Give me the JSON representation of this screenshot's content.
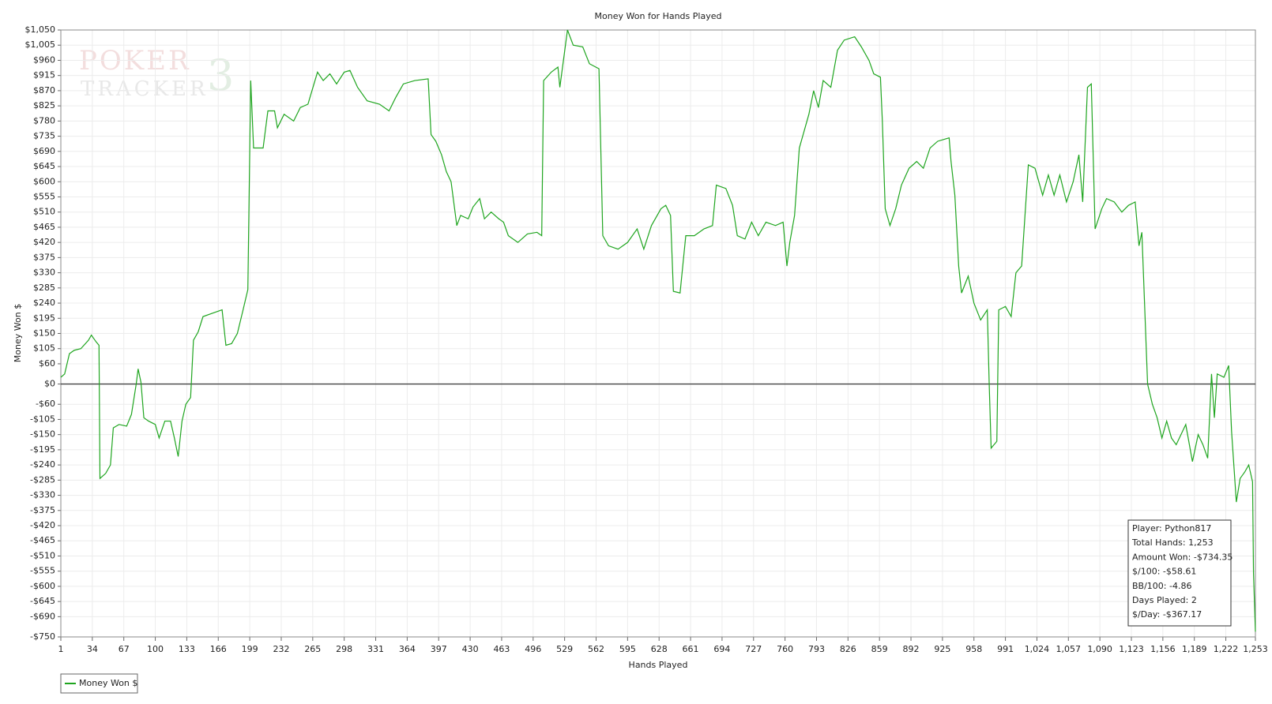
{
  "chart_data": {
    "type": "line",
    "title": "Money Won for Hands Played",
    "x_label": "Hands Played",
    "y_label": "Money Won $",
    "logo": [
      "POKER",
      "TRACKER",
      "3"
    ],
    "x": [
      1,
      5,
      10,
      15,
      22,
      30,
      33,
      38,
      41,
      42,
      48,
      53,
      56,
      62,
      70,
      75,
      80,
      82,
      85,
      88,
      93,
      100,
      104,
      110,
      116,
      120,
      124,
      128,
      132,
      137,
      140,
      145,
      150,
      160,
      170,
      174,
      180,
      186,
      192,
      197,
      200,
      203,
      213,
      218,
      225,
      228,
      235,
      245,
      252,
      260,
      270,
      276,
      283,
      290,
      298,
      304,
      312,
      322,
      335,
      345,
      352,
      360,
      372,
      386,
      389,
      394,
      400,
      405,
      410,
      416,
      420,
      428,
      433,
      440,
      445,
      452,
      460,
      465,
      470,
      480,
      490,
      500,
      505,
      507,
      515,
      522,
      524,
      532,
      538,
      548,
      555,
      565,
      569,
      575,
      585,
      595,
      605,
      612,
      620,
      630,
      635,
      640,
      643,
      650,
      656,
      665,
      675,
      684,
      688,
      698,
      705,
      710,
      718,
      725,
      732,
      740,
      750,
      758,
      762,
      765,
      770,
      775,
      780,
      785,
      790,
      795,
      800,
      808,
      815,
      822,
      833,
      840,
      848,
      853,
      860,
      862,
      865,
      870,
      876,
      882,
      890,
      898,
      905,
      912,
      920,
      932,
      934,
      938,
      942,
      945,
      952,
      958,
      965,
      972,
      974,
      976,
      982,
      984,
      991,
      997,
      1002,
      1008,
      1015,
      1022,
      1030,
      1036,
      1042,
      1048,
      1055,
      1062,
      1068,
      1072,
      1077,
      1081,
      1085,
      1092,
      1097,
      1105,
      1113,
      1120,
      1127,
      1131,
      1134,
      1140,
      1145,
      1150,
      1155,
      1160,
      1165,
      1170,
      1180,
      1187,
      1193,
      1198,
      1203,
      1207,
      1210,
      1213,
      1220,
      1225,
      1228,
      1233,
      1237,
      1242,
      1246,
      1250,
      1251,
      1253
    ],
    "series": [
      {
        "name": "Money Won $",
        "color": "#1fa51f",
        "values": [
          20,
          30,
          90,
          100,
          105,
          130,
          145,
          125,
          115,
          -280,
          -265,
          -240,
          -130,
          -120,
          -125,
          -90,
          0,
          45,
          5,
          -100,
          -110,
          -120,
          -160,
          -110,
          -110,
          -160,
          -215,
          -110,
          -60,
          -40,
          130,
          155,
          200,
          210,
          220,
          115,
          120,
          150,
          220,
          280,
          900,
          700,
          700,
          810,
          810,
          760,
          800,
          780,
          820,
          830,
          925,
          900,
          920,
          890,
          925,
          930,
          880,
          840,
          830,
          810,
          850,
          890,
          900,
          905,
          740,
          720,
          680,
          630,
          600,
          470,
          500,
          490,
          525,
          550,
          490,
          510,
          490,
          480,
          440,
          420,
          445,
          450,
          440,
          900,
          925,
          940,
          880,
          1050,
          1005,
          1000,
          950,
          935,
          440,
          410,
          400,
          420,
          460,
          400,
          470,
          520,
          530,
          500,
          275,
          270,
          440,
          440,
          460,
          470,
          590,
          580,
          530,
          440,
          430,
          480,
          440,
          480,
          470,
          480,
          350,
          420,
          500,
          700,
          750,
          800,
          870,
          820,
          900,
          880,
          990,
          1020,
          1030,
          1000,
          960,
          920,
          910,
          780,
          520,
          470,
          520,
          590,
          640,
          660,
          640,
          700,
          720,
          730,
          660,
          560,
          350,
          270,
          320,
          240,
          190,
          220,
          0,
          -190,
          -170,
          220,
          230,
          200,
          330,
          350,
          650,
          640,
          560,
          620,
          560,
          620,
          540,
          600,
          680,
          540,
          880,
          890,
          460,
          520,
          550,
          540,
          510,
          530,
          540,
          410,
          450,
          0,
          -60,
          -100,
          -160,
          -110,
          -160,
          -180,
          -120,
          -230,
          -150,
          -180,
          -220,
          30,
          -100,
          30,
          20,
          55,
          -140,
          -350,
          -280,
          -260,
          -240,
          -290,
          -560,
          -734.35
        ]
      }
    ],
    "xlim": [
      1,
      1253
    ],
    "ylim": [
      -750,
      1050
    ],
    "xticks": [
      1,
      34,
      67,
      100,
      133,
      166,
      199,
      232,
      265,
      298,
      331,
      364,
      397,
      430,
      463,
      496,
      529,
      562,
      595,
      628,
      661,
      694,
      727,
      760,
      793,
      826,
      859,
      892,
      925,
      958,
      991,
      {
        "value": 1024,
        "label": "1,024"
      },
      {
        "value": 1057,
        "label": "1,057"
      },
      {
        "value": 1090,
        "label": "1,090"
      },
      {
        "value": 1123,
        "label": "1,123"
      },
      {
        "value": 1156,
        "label": "1,156"
      },
      {
        "value": 1189,
        "label": "1,189"
      },
      {
        "value": 1222,
        "label": "1,222"
      },
      {
        "value": 1253,
        "label": "1,253"
      }
    ],
    "yticks": [
      {
        "value": 1050,
        "label": "$1,050"
      },
      {
        "value": 1005,
        "label": "$1,005"
      },
      {
        "value": 960,
        "label": "$960"
      },
      {
        "value": 915,
        "label": "$915"
      },
      {
        "value": 870,
        "label": "$870"
      },
      {
        "value": 825,
        "label": "$825"
      },
      {
        "value": 780,
        "label": "$780"
      },
      {
        "value": 735,
        "label": "$735"
      },
      {
        "value": 690,
        "label": "$690"
      },
      {
        "value": 645,
        "label": "$645"
      },
      {
        "value": 600,
        "label": "$600"
      },
      {
        "value": 555,
        "label": "$555"
      },
      {
        "value": 510,
        "label": "$510"
      },
      {
        "value": 465,
        "label": "$465"
      },
      {
        "value": 420,
        "label": "$420"
      },
      {
        "value": 375,
        "label": "$375"
      },
      {
        "value": 330,
        "label": "$330"
      },
      {
        "value": 285,
        "label": "$285"
      },
      {
        "value": 240,
        "label": "$240"
      },
      {
        "value": 195,
        "label": "$195"
      },
      {
        "value": 150,
        "label": "$150"
      },
      {
        "value": 105,
        "label": "$105"
      },
      {
        "value": 60,
        "label": "$60"
      },
      {
        "value": 0,
        "label": "$0"
      },
      {
        "value": -60,
        "label": "-$60"
      },
      {
        "value": -105,
        "label": "-$105"
      },
      {
        "value": -150,
        "label": "-$150"
      },
      {
        "value": -195,
        "label": "-$195"
      },
      {
        "value": -240,
        "label": "-$240"
      },
      {
        "value": -285,
        "label": "-$285"
      },
      {
        "value": -330,
        "label": "-$330"
      },
      {
        "value": -375,
        "label": "-$375"
      },
      {
        "value": -420,
        "label": "-$420"
      },
      {
        "value": -465,
        "label": "-$465"
      },
      {
        "value": -510,
        "label": "-$510"
      },
      {
        "value": -555,
        "label": "-$555"
      },
      {
        "value": -600,
        "label": "-$600"
      },
      {
        "value": -645,
        "label": "-$645"
      },
      {
        "value": -690,
        "label": "-$690"
      },
      {
        "value": -750,
        "label": "-$750"
      }
    ],
    "reference_lines": [
      0
    ],
    "grid": true,
    "legend": "bottom-left",
    "stats_box": [
      "Player: Python817",
      "Total Hands: 1,253",
      "Amount Won: -$734.35",
      "$/100: -$58.61",
      "BB/100: -4.86",
      "Days Played: 2",
      "$/Day: -$367.17"
    ]
  }
}
